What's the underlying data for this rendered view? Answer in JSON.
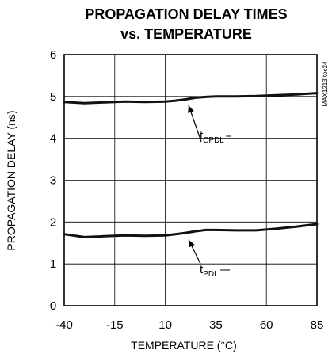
{
  "chart_data": {
    "type": "line",
    "title": [
      "PROPAGATION DELAY TIMES",
      "vs. TEMPERATURE"
    ],
    "xlabel": "TEMPERATURE (°C)",
    "ylabel": "PROPAGATION DELAY (ns)",
    "xlim": [
      -40,
      85
    ],
    "ylim": [
      0,
      6
    ],
    "x_ticks": [
      -40,
      -15,
      10,
      35,
      60,
      85
    ],
    "x_tick_labels": [
      "-40",
      "-15",
      "10",
      "35",
      "60",
      "85"
    ],
    "y_ticks": [
      0,
      1,
      2,
      3,
      4,
      5,
      6
    ],
    "y_tick_labels": [
      "0",
      "1",
      "2",
      "3",
      "4",
      "5",
      "6"
    ],
    "grid": true,
    "series": [
      {
        "name": "tCPDL",
        "label_main": "t",
        "label_sub": "CPDL",
        "x": [
          -40,
          -30,
          -20,
          -10,
          0,
          10,
          15,
          20,
          25,
          30,
          35,
          45,
          55,
          65,
          75,
          85
        ],
        "values": [
          4.87,
          4.84,
          4.86,
          4.88,
          4.87,
          4.88,
          4.9,
          4.93,
          4.97,
          4.99,
          5.0,
          5.0,
          5.01,
          5.03,
          5.05,
          5.08
        ]
      },
      {
        "name": "tPDL",
        "label_main": "t",
        "label_sub": "PDL",
        "x": [
          -40,
          -30,
          -20,
          -10,
          0,
          10,
          15,
          20,
          25,
          30,
          35,
          45,
          55,
          65,
          75,
          85
        ],
        "values": [
          1.71,
          1.64,
          1.66,
          1.68,
          1.67,
          1.68,
          1.71,
          1.74,
          1.78,
          1.81,
          1.81,
          1.8,
          1.8,
          1.84,
          1.89,
          1.95
        ]
      }
    ],
    "side_label": "MAX1213 toc24"
  }
}
